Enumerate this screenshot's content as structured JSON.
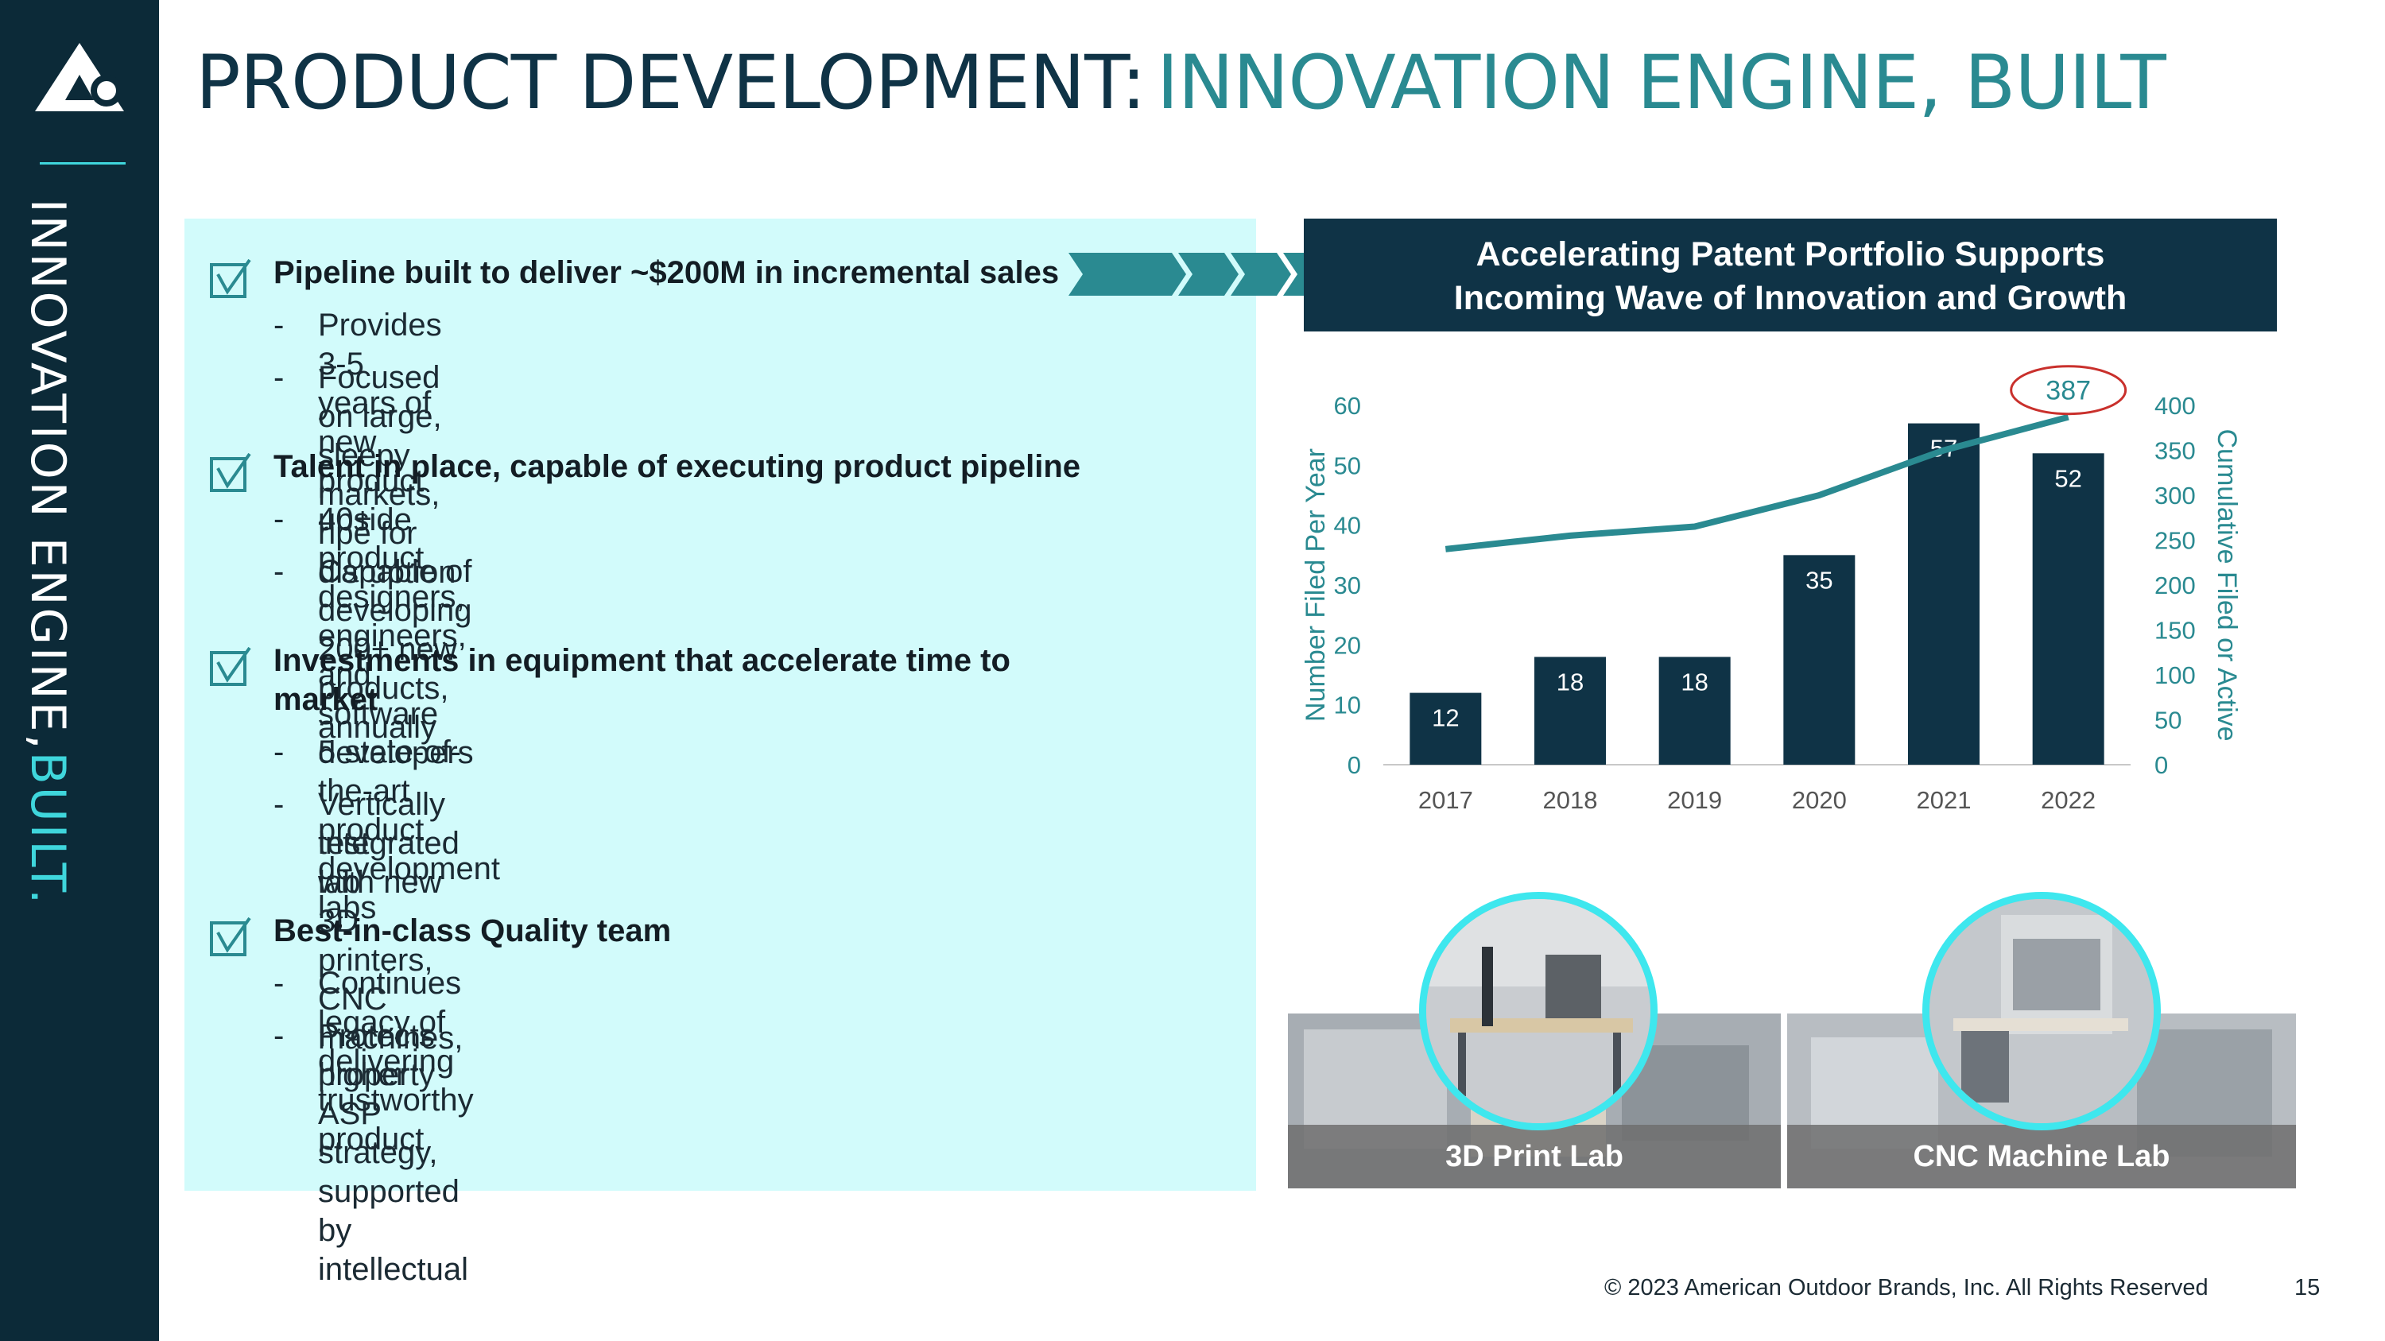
{
  "sidebar": {
    "text": "INNOVATION ENGINE,",
    "accent": "BUILT."
  },
  "title": {
    "part1": "PRODUCT DEVELOPMENT:",
    "part2": "INNOVATION ENGINE, BUILT"
  },
  "bullets": [
    {
      "title": "Pipeline built to deliver ~$200M in incremental sales",
      "subs": [
        "Provides 3-5 years of new product upside",
        "Focused on large, sleepy markets, ripe for disruption"
      ]
    },
    {
      "title": "Talent in place, capable of executing product pipeline",
      "subs": [
        "40+ product designers, engineers, and software developers",
        "Capable of developing 200+ new products, annually"
      ]
    },
    {
      "title_line1": "Investments in equipment that accelerate time to",
      "title_line2": "market",
      "subs": [
        "5 state-of-the-art product development labs"
      ],
      "sub_multi": {
        "line1": "Vertically integrated with new 3D printers, CNC machines,",
        "line2": "test lab"
      }
    },
    {
      "title": "Best-in-class Quality team",
      "subs": [
        "Continues legacy of delivering trustworthy product"
      ],
      "sub_multi": {
        "line1": "Protects higher ASP strategy, supported by intellectual",
        "line2": "property"
      }
    }
  ],
  "chart_header": {
    "line1": "Accelerating Patent Portfolio Supports",
    "line2": "Incoming Wave of Innovation and Growth"
  },
  "chart_data": {
    "type": "bar",
    "categories": [
      "2017",
      "2018",
      "2019",
      "2020",
      "2021",
      "2022"
    ],
    "series": [
      {
        "values": [
          12,
          18,
          18,
          35,
          57,
          52
        ],
        "axis": "left",
        "color": "#0f3346"
      },
      {
        "type": "line",
        "values": [
          240,
          255,
          265,
          300,
          350,
          387
        ],
        "axis": "right",
        "color": "#2a8a91"
      }
    ],
    "ylabel": "Number Filed Per Year",
    "y2label": "Cumulative Filed or Active",
    "ylim": [
      0,
      60
    ],
    "y2lim": [
      0,
      400
    ],
    "yticks": [
      0,
      10,
      20,
      30,
      40,
      50,
      60
    ],
    "y2ticks": [
      0,
      50,
      100,
      150,
      200,
      250,
      300,
      350,
      400
    ],
    "annotation": "387",
    "grid": false
  },
  "labs": [
    {
      "caption": "3D Print Lab"
    },
    {
      "caption": "CNC Machine Lab"
    }
  ],
  "footer": {
    "copyright": "© 2023 American Outdoor Brands, Inc. All Rights Reserved",
    "page": "15"
  },
  "colors": {
    "navy": "#0c2a38",
    "teal": "#2a8a91",
    "cyan": "#3fd6dc",
    "panel": "#d2fbfb"
  },
  "icons": [
    "brand-logo-icon",
    "checkbox-check-icon",
    "chevron-arrow-icon"
  ]
}
